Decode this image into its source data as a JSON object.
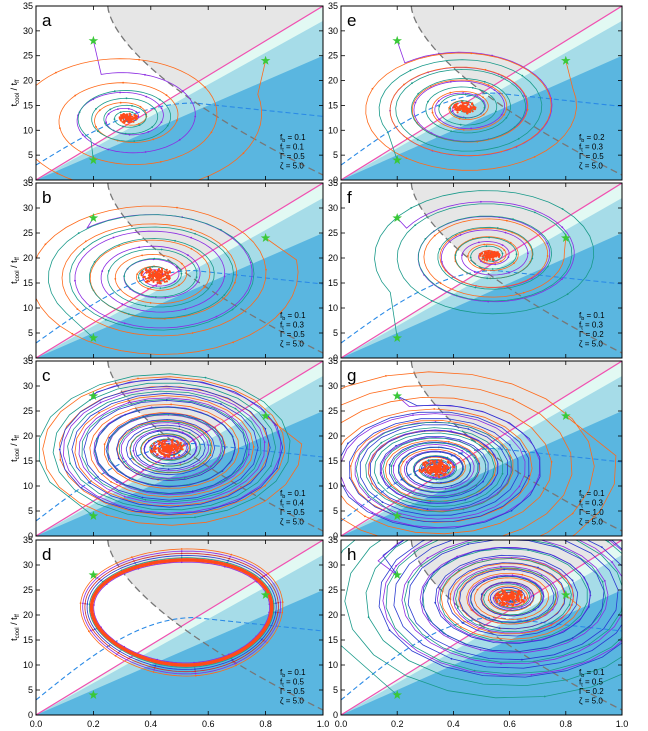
{
  "chart_data": {
    "type": "line",
    "x_ticks": [
      "0.0",
      "0.2",
      "0.4",
      "0.6",
      "0.8",
      "1.0"
    ],
    "y_ticks": [
      "0",
      "5",
      "10",
      "15",
      "20",
      "25",
      "30",
      "35"
    ],
    "xlim": [
      0,
      1
    ],
    "ylim": [
      0,
      35
    ],
    "ylabel": {
      "main": "t",
      "sub1": "cool",
      "sep": " / t",
      "sub2": "ff"
    },
    "param_names": [
      "f",
      "f",
      "Γ",
      "ζ"
    ],
    "param_subs": [
      "b",
      "t",
      "",
      ""
    ],
    "start_points": [
      [
        0.2,
        28
      ],
      [
        0.8,
        24
      ],
      [
        0.2,
        4
      ]
    ],
    "series_colors": [
      "#8b2be2",
      "#ff6a1a",
      "#1a9a8a",
      "#2a3ad0",
      "#d02a2a"
    ],
    "colors": {
      "dark_region": "#5ab6e0",
      "mid_region": "#a6dce8",
      "light_region": "#e2f9f3",
      "gray_region": "#e6e6e6",
      "pink_line": "#f050b0",
      "dashed_blue": "#2a8ae6",
      "dashed_gray": "#777777",
      "star": "#3ac838",
      "core": "#ff4a1a"
    },
    "panels": [
      {
        "letter": "a",
        "params": [
          "0.1",
          "0.1",
          "0.5",
          "5.0"
        ],
        "fb": 0.1,
        "ft": 0.1,
        "gamma": 0.5,
        "zeta": 5.0,
        "attractor": [
          0.32,
          12.5
        ],
        "behavior": "spiral",
        "spread": 0.4,
        "turns": 3,
        "series": 3
      },
      {
        "letter": "e",
        "params": [
          "0.2",
          "0.3",
          "0.5",
          "5.0"
        ],
        "fb": 0.2,
        "ft": 0.3,
        "gamma": 0.5,
        "zeta": 5.0,
        "attractor": [
          0.44,
          14.5
        ],
        "behavior": "spiral",
        "spread": 0.55,
        "turns": 5,
        "series": 3
      },
      {
        "letter": "b",
        "params": [
          "0.1",
          "0.3",
          "0.5",
          "5.0"
        ],
        "fb": 0.1,
        "ft": 0.3,
        "gamma": 0.5,
        "zeta": 5.0,
        "attractor": [
          0.42,
          16.5
        ],
        "behavior": "spiral",
        "spread": 0.9,
        "turns": 5,
        "series": 3
      },
      {
        "letter": "f",
        "params": [
          "0.1",
          "0.3",
          "0.2",
          "5.0"
        ],
        "fb": 0.1,
        "ft": 0.3,
        "gamma": 0.2,
        "zeta": 5.0,
        "attractor": [
          0.53,
          20.5
        ],
        "behavior": "spiral",
        "spread": 0.45,
        "turns": 5,
        "series": 3
      },
      {
        "letter": "c",
        "params": [
          "0.1",
          "0.4",
          "0.5",
          "5.0"
        ],
        "fb": 0.1,
        "ft": 0.4,
        "gamma": 0.5,
        "zeta": 5.0,
        "attractor": [
          0.46,
          17.5
        ],
        "behavior": "spiral",
        "spread": 1.0,
        "turns": 10,
        "series": 4
      },
      {
        "letter": "g",
        "params": [
          "0.1",
          "0.3",
          "1.0",
          "5.0"
        ],
        "fb": 0.1,
        "ft": 0.3,
        "gamma": 1.0,
        "zeta": 5.0,
        "attractor": [
          0.34,
          13.5
        ],
        "behavior": "spiral",
        "spread": 1.0,
        "turns": 10,
        "series": 4
      },
      {
        "letter": "d",
        "params": [
          "0.1",
          "0.5",
          "0.5",
          "5.0"
        ],
        "fb": 0.1,
        "ft": 0.5,
        "gamma": 0.5,
        "zeta": 5.0,
        "attractor": [
          0.48,
          21.0
        ],
        "behavior": "limit_cycle",
        "cycle": {
          "xmin": 0.195,
          "xmax": 0.82,
          "ymin": 10.0,
          "ymax": 31.0
        },
        "series": 4
      },
      {
        "letter": "h",
        "params": [
          "0.1",
          "0.5",
          "0.2",
          "5.0"
        ],
        "fb": 0.1,
        "ft": 0.5,
        "gamma": 0.2,
        "zeta": 5.0,
        "attractor": [
          0.6,
          23.5
        ],
        "behavior": "spiral",
        "spread": 0.95,
        "turns": 10,
        "series": 4
      }
    ]
  }
}
